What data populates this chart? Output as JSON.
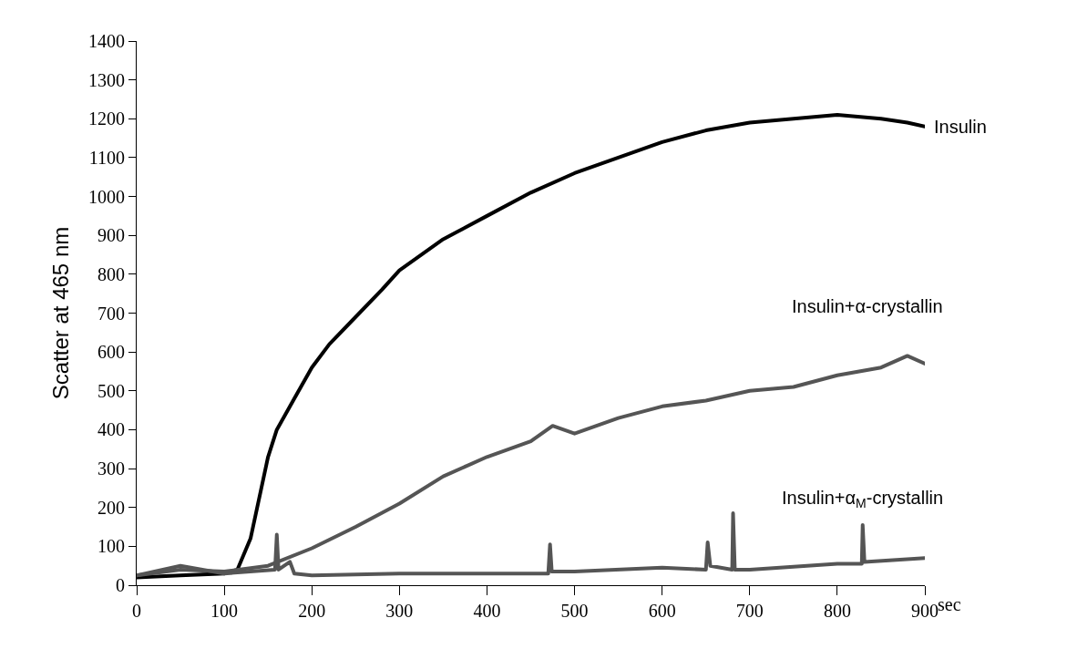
{
  "chart_data": {
    "type": "line",
    "xlabel": "sec",
    "ylabel": "Scatter at 465 nm",
    "xlim": [
      0,
      900
    ],
    "xticks": [
      0,
      100,
      200,
      300,
      400,
      500,
      600,
      700,
      800,
      900
    ],
    "ylim": [
      0,
      1400
    ],
    "yticks": [
      0,
      100,
      200,
      300,
      400,
      500,
      600,
      700,
      800,
      900,
      1000,
      1100,
      1200,
      1300,
      1400
    ],
    "grid": false,
    "legend": false,
    "marker": "none",
    "line_style": "solid",
    "series": [
      {
        "name": "Insulin",
        "color": "#000000",
        "x": [
          0,
          50,
          100,
          115,
          130,
          150,
          160,
          180,
          200,
          220,
          250,
          280,
          300,
          350,
          400,
          450,
          500,
          550,
          600,
          650,
          700,
          750,
          800,
          850,
          880,
          900
        ],
        "values": [
          20,
          25,
          30,
          40,
          120,
          330,
          400,
          480,
          560,
          620,
          690,
          760,
          810,
          890,
          950,
          1010,
          1060,
          1100,
          1140,
          1170,
          1190,
          1200,
          1210,
          1200,
          1190,
          1180
        ]
      },
      {
        "name": "Insulin+α-crystallin",
        "color": "#555555",
        "x": [
          0,
          50,
          100,
          150,
          200,
          250,
          300,
          350,
          400,
          450,
          475,
          500,
          550,
          600,
          650,
          700,
          750,
          800,
          850,
          880,
          900
        ],
        "values": [
          25,
          40,
          35,
          50,
          95,
          150,
          210,
          280,
          330,
          370,
          410,
          390,
          430,
          460,
          475,
          500,
          510,
          540,
          560,
          590,
          570
        ]
      },
      {
        "name": "Insulin+α$_{M}$-crystallin",
        "color": "#555555",
        "x": [
          0,
          50,
          100,
          158,
          160,
          162,
          175,
          180,
          200,
          300,
          400,
          470,
          472,
          474,
          500,
          600,
          650,
          652,
          655,
          680,
          681,
          683,
          700,
          800,
          828,
          829,
          831,
          900
        ],
        "values": [
          25,
          50,
          30,
          40,
          130,
          40,
          60,
          30,
          25,
          30,
          30,
          30,
          105,
          35,
          35,
          45,
          40,
          110,
          50,
          40,
          185,
          40,
          40,
          55,
          55,
          155,
          60,
          70
        ]
      }
    ]
  }
}
